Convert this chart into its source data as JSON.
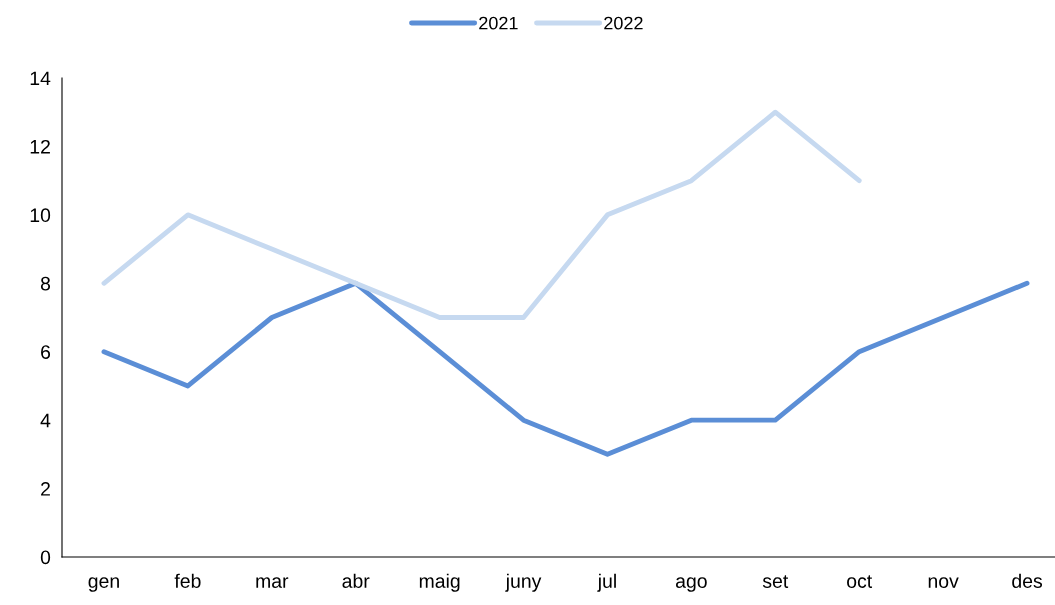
{
  "chart_data": {
    "type": "line",
    "categories": [
      "gen",
      "feb",
      "mar",
      "abr",
      "maig",
      "juny",
      "jul",
      "ago",
      "set",
      "oct",
      "nov",
      "des"
    ],
    "series": [
      {
        "name": "2021",
        "color": "#5b8ed6",
        "values": [
          6,
          5,
          7,
          8,
          6,
          4,
          3,
          4,
          4,
          6,
          7,
          8
        ]
      },
      {
        "name": "2022",
        "color": "#c6d9f0",
        "values": [
          8,
          10,
          9,
          8,
          7,
          7,
          10,
          11,
          13,
          11,
          null,
          null
        ]
      }
    ],
    "ylim": [
      0,
      14
    ],
    "yticks": [
      0,
      2,
      4,
      6,
      8,
      10,
      12,
      14
    ],
    "grid": false,
    "legend": "top",
    "marker": "none",
    "line_style": "solid"
  }
}
